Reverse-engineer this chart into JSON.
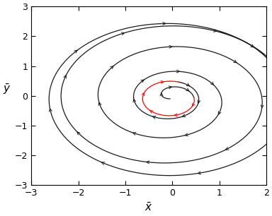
{
  "title": "",
  "xlabel": "$\\bar{x}$",
  "ylabel": "$\\bar{y}$",
  "xlim": [
    -3,
    2
  ],
  "ylim": [
    -3,
    3
  ],
  "xticks": [
    -3,
    -2,
    -1,
    0,
    1,
    2
  ],
  "yticks": [
    -3,
    -2,
    -1,
    0,
    1,
    2,
    3
  ],
  "background_color": "#ffffff",
  "line_color": "#1a1a1a",
  "red_color": "#ff0000",
  "arrow_color": "#1a1a1a",
  "figsize": [
    3.84,
    3.06
  ],
  "dpi": 100
}
